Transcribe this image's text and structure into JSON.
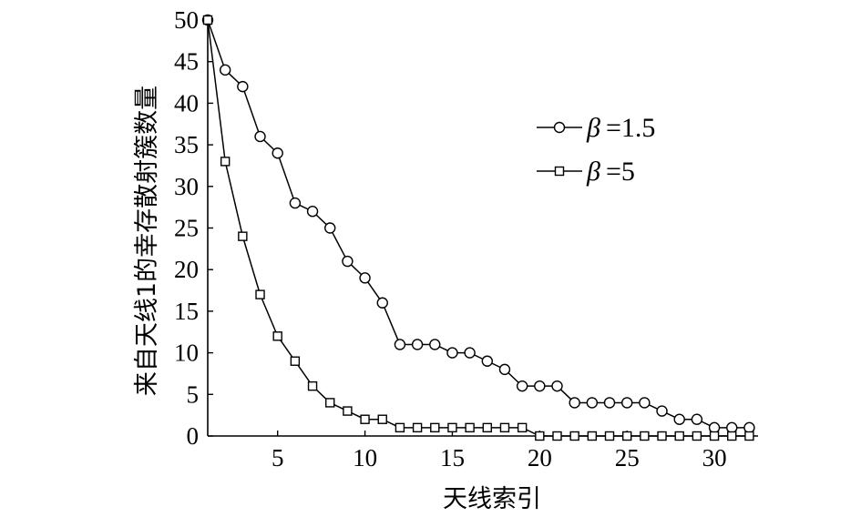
{
  "chart_data": {
    "type": "line",
    "title": "",
    "xlabel": "天线索引",
    "ylabel": "来自天线1的幸存散射簇数量",
    "xlim": [
      1,
      32.5
    ],
    "ylim": [
      0,
      50
    ],
    "xticks": [
      5,
      10,
      15,
      20,
      25,
      30
    ],
    "yticks": [
      0,
      5,
      10,
      15,
      20,
      25,
      30,
      35,
      40,
      45,
      50
    ],
    "grid": false,
    "legend_position": "top-right",
    "x": [
      1,
      2,
      3,
      4,
      5,
      6,
      7,
      8,
      9,
      10,
      11,
      12,
      13,
      14,
      15,
      16,
      17,
      18,
      19,
      20,
      21,
      22,
      23,
      24,
      25,
      26,
      27,
      28,
      29,
      30,
      31,
      32
    ],
    "series": [
      {
        "symbol": "β",
        "value_text": "=1.5",
        "marker": "circle",
        "values": [
          50,
          44,
          42,
          36,
          34,
          28,
          27,
          25,
          21,
          19,
          16,
          11,
          11,
          11,
          10,
          10,
          9,
          8,
          6,
          6,
          6,
          4,
          4,
          4,
          4,
          4,
          3,
          2,
          2,
          1,
          1,
          1
        ]
      },
      {
        "symbol": "β",
        "value_text": "=5",
        "marker": "square",
        "values": [
          50,
          33,
          24,
          17,
          12,
          9,
          6,
          4,
          3,
          2,
          2,
          1,
          1,
          1,
          1,
          1,
          1,
          1,
          1,
          0,
          0,
          0,
          0,
          0,
          0,
          0,
          0,
          0,
          0,
          0,
          0,
          0
        ]
      }
    ]
  }
}
